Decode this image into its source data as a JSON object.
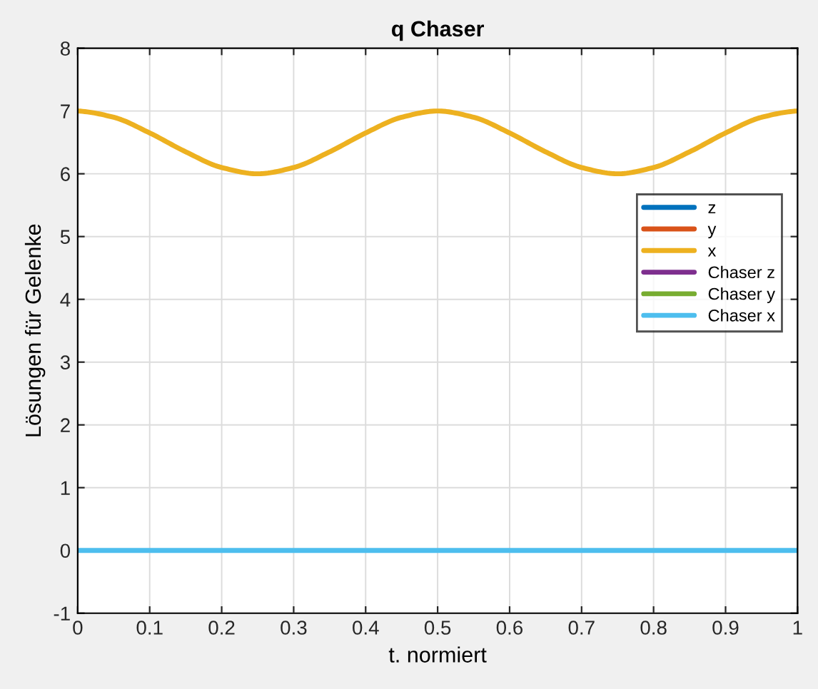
{
  "chart_data": {
    "type": "line",
    "title": "q Chaser",
    "xlabel": "t. normiert",
    "ylabel": "Lösungen für Gelenke",
    "xlim": [
      0,
      1
    ],
    "xticks": [
      0,
      0.1,
      0.2,
      0.3,
      0.4,
      0.5,
      0.6,
      0.7,
      0.8,
      0.9,
      1
    ],
    "ylim": [
      -1,
      8
    ],
    "yticks": [
      -1,
      0,
      1,
      2,
      3,
      4,
      5,
      6,
      7,
      8
    ],
    "grid": true,
    "legend": "right",
    "series": [
      {
        "name": "z",
        "color": "#0072bd"
      },
      {
        "name": "y",
        "color": "#d95319"
      },
      {
        "name": "x",
        "color": "#edb120",
        "x": [
          0,
          0.05,
          0.1,
          0.15,
          0.2,
          0.25,
          0.3,
          0.35,
          0.4,
          0.45,
          0.5,
          0.55,
          0.6,
          0.65,
          0.7,
          0.75,
          0.8,
          0.85,
          0.9,
          0.95,
          1
        ],
        "values": [
          7,
          6.9,
          6.65,
          6.35,
          6.1,
          6.0,
          6.1,
          6.35,
          6.65,
          6.9,
          7,
          6.9,
          6.65,
          6.35,
          6.1,
          6.0,
          6.1,
          6.35,
          6.65,
          6.9,
          7
        ]
      },
      {
        "name": "Chaser z",
        "color": "#7e2f8e"
      },
      {
        "name": "Chaser y",
        "color": "#77ac30"
      },
      {
        "name": "Chaser x",
        "color": "#4dbeee",
        "x": [
          0,
          1
        ],
        "values": [
          0,
          0
        ]
      }
    ]
  }
}
